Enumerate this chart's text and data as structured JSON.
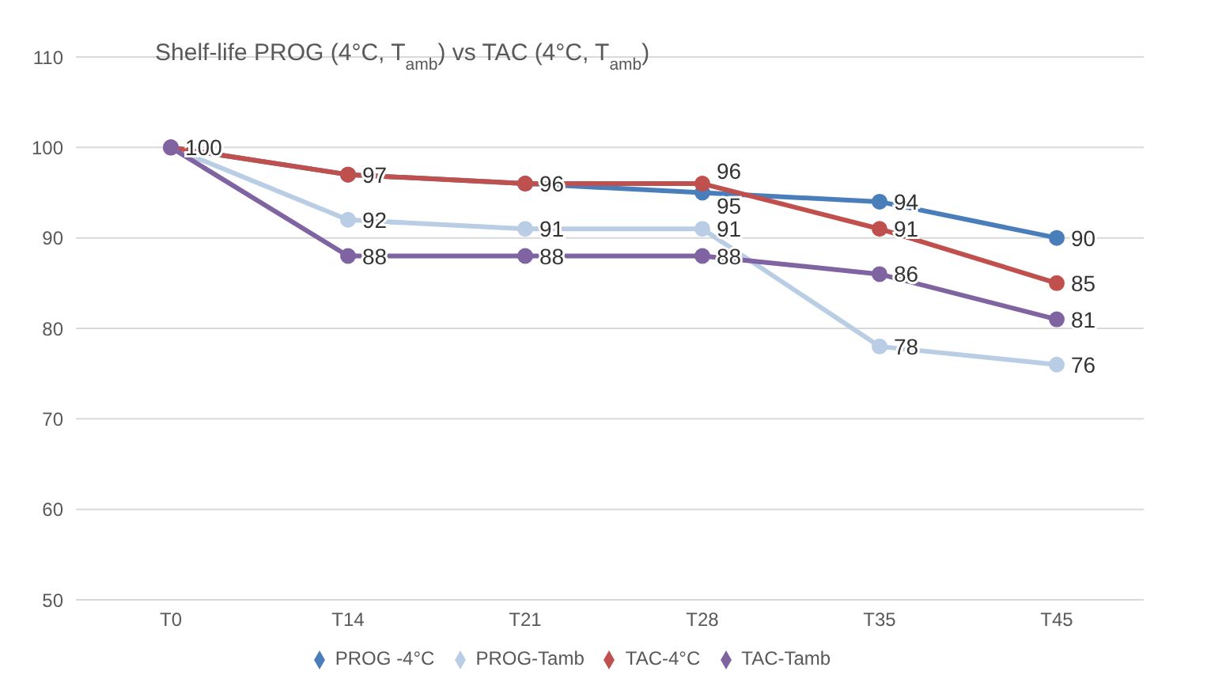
{
  "chart_data": {
    "type": "line",
    "title": "Shelf-life PROG (4°C, T$_{amb}$) vs TAC (4°C, T$_{amb}$)",
    "categories": [
      "T0",
      "T14",
      "T21",
      "T28",
      "T35",
      "T45"
    ],
    "series": [
      {
        "name": "PROG -4°C",
        "color": "#4a7ebb",
        "values": [
          100,
          97,
          96,
          95,
          94,
          90
        ],
        "value_labels": [
          "100",
          "97",
          "96",
          "95",
          "94",
          "90"
        ]
      },
      {
        "name": "PROG-Tamb",
        "color": "#b9cde5",
        "values": [
          100,
          92,
          91,
          91,
          78,
          76
        ],
        "value_labels": [
          null,
          "92",
          "91",
          "91",
          "78",
          "76"
        ]
      },
      {
        "name": "TAC-4°C",
        "color": "#c0504d",
        "values": [
          100,
          97,
          96,
          96,
          91,
          85
        ],
        "value_labels": [
          null,
          null,
          null,
          "96",
          "91",
          "85"
        ]
      },
      {
        "name": "TAC-Tamb",
        "color": "#8064a2",
        "values": [
          100,
          88,
          88,
          88,
          86,
          81
        ],
        "value_labels": [
          null,
          "88",
          "88",
          "88",
          "86",
          "81"
        ]
      }
    ],
    "ylim": [
      50,
      110
    ],
    "yticks": [
      50,
      60,
      70,
      80,
      90,
      100,
      110
    ],
    "grid": "y",
    "legend": "bottom",
    "marker": "circle",
    "line_style": "solid"
  }
}
